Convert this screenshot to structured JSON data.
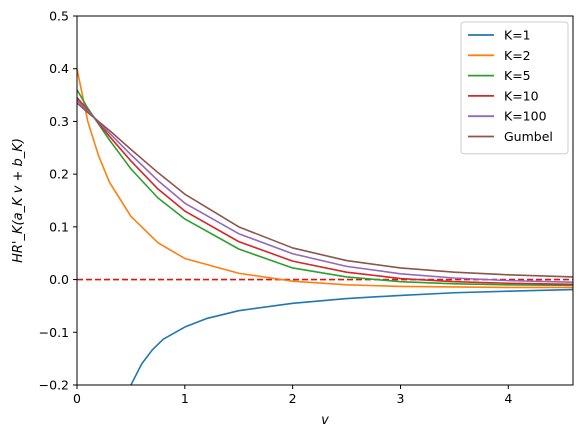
{
  "chart_data": {
    "type": "line",
    "xlabel": "v",
    "ylabel": "HR'_K(a_K v + b_K)",
    "xlim": [
      0,
      4.6
    ],
    "ylim": [
      -0.2,
      0.5
    ],
    "xticks": [
      0,
      1,
      2,
      3,
      4
    ],
    "yticks": [
      -0.2,
      -0.1,
      0.0,
      0.1,
      0.2,
      0.3,
      0.4,
      0.5
    ],
    "xtick_labels": [
      "0",
      "1",
      "2",
      "3",
      "4"
    ],
    "ytick_labels": [
      "−0.2",
      "−0.1",
      "0.0",
      "0.1",
      "0.2",
      "0.3",
      "0.4",
      "0.5"
    ],
    "grid": false,
    "legend_position": "top-right",
    "reference_line": {
      "y": 0.0,
      "color": "#e3130b",
      "style": "dashed"
    },
    "series": [
      {
        "name": "K=1",
        "color": "#1f77b4",
        "x": [
          0.5,
          0.6,
          0.7,
          0.8,
          1.0,
          1.2,
          1.5,
          2.0,
          2.5,
          3.0,
          3.5,
          4.0,
          4.6
        ],
        "y": [
          -0.2,
          -0.16,
          -0.133,
          -0.113,
          -0.09,
          -0.074,
          -0.059,
          -0.045,
          -0.036,
          -0.03,
          -0.025,
          -0.022,
          -0.019
        ]
      },
      {
        "name": "K=2",
        "color": "#ff7f0e",
        "x": [
          0.0,
          0.1,
          0.2,
          0.3,
          0.5,
          0.75,
          1.0,
          1.5,
          2.0,
          2.5,
          3.0,
          4.0,
          4.6
        ],
        "y": [
          0.4,
          0.3,
          0.235,
          0.185,
          0.12,
          0.07,
          0.04,
          0.012,
          -0.003,
          -0.01,
          -0.013,
          -0.015,
          -0.015
        ]
      },
      {
        "name": "K=5",
        "color": "#2ca02c",
        "x": [
          0.0,
          0.1,
          0.3,
          0.5,
          0.75,
          1.0,
          1.5,
          2.0,
          2.5,
          3.0,
          3.5,
          4.0,
          4.6
        ],
        "y": [
          0.36,
          0.325,
          0.265,
          0.21,
          0.155,
          0.115,
          0.058,
          0.022,
          0.005,
          -0.004,
          -0.008,
          -0.01,
          -0.011
        ]
      },
      {
        "name": "K=10",
        "color": "#d62728",
        "x": [
          0.0,
          0.1,
          0.3,
          0.5,
          0.75,
          1.0,
          1.5,
          2.0,
          2.5,
          3.0,
          3.5,
          4.0,
          4.6
        ],
        "y": [
          0.345,
          0.322,
          0.272,
          0.225,
          0.172,
          0.13,
          0.072,
          0.035,
          0.014,
          0.002,
          -0.004,
          -0.007,
          -0.009
        ]
      },
      {
        "name": "K=100",
        "color": "#9467bd",
        "x": [
          0.0,
          0.1,
          0.3,
          0.5,
          0.75,
          1.0,
          1.5,
          2.0,
          2.5,
          3.0,
          3.5,
          4.0,
          4.6
        ],
        "y": [
          0.34,
          0.32,
          0.278,
          0.237,
          0.188,
          0.145,
          0.087,
          0.049,
          0.025,
          0.011,
          0.003,
          -0.002,
          -0.005
        ]
      },
      {
        "name": "Gumbel",
        "color": "#8c564b",
        "x": [
          0.0,
          0.1,
          0.3,
          0.5,
          0.75,
          1.0,
          1.5,
          2.0,
          2.5,
          3.0,
          3.5,
          4.0,
          4.6
        ],
        "y": [
          0.335,
          0.317,
          0.283,
          0.247,
          0.203,
          0.162,
          0.1,
          0.06,
          0.036,
          0.022,
          0.014,
          0.009,
          0.005
        ]
      }
    ]
  }
}
